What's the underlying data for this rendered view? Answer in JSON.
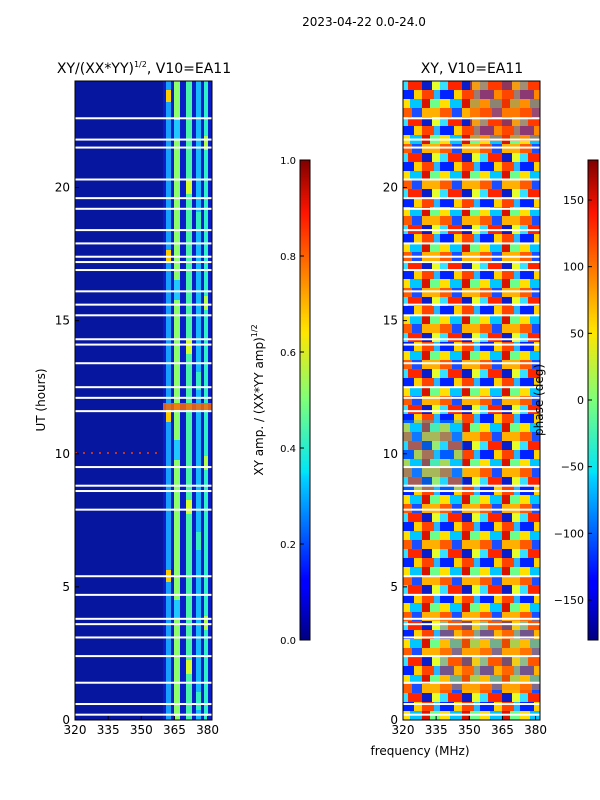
{
  "suptitle": "2023-04-22 0.0-24.0",
  "shared_xlabel": "frequency (MHz)",
  "chart_data": [
    {
      "type": "heatmap",
      "title": "XY/(XX*YY)^1/2, V10=EA11",
      "title_main": "XY/(XX*YY)",
      "title_sup": "1/2",
      "title_tail": ", V10=EA11",
      "xlabel": "frequency (MHz)",
      "ylabel": "UT (hours)",
      "xlim": [
        320,
        382
      ],
      "ylim": [
        0,
        24
      ],
      "xticks": [
        320,
        335,
        350,
        365,
        380
      ],
      "yticks": [
        0,
        5,
        10,
        15,
        20
      ],
      "colorbar": {
        "label": "XY amp. / (XX*YY amp)^1/2",
        "label_main": "XY amp. / (XX*YY amp)",
        "label_sup": "1/2",
        "range": [
          0.0,
          1.0
        ],
        "ticks": [
          "0.0",
          "0.2",
          "0.4",
          "0.6",
          "0.8",
          "1.0"
        ],
        "colormap": "jet"
      }
    },
    {
      "type": "heatmap",
      "title": "XY, V10=EA11",
      "xlabel": "frequency (MHz)",
      "ylabel": "",
      "xlim": [
        320,
        382
      ],
      "ylim": [
        0,
        24
      ],
      "xticks": [
        320,
        335,
        350,
        365,
        380
      ],
      "yticks": [
        0,
        5,
        10,
        15,
        20
      ],
      "colorbar": {
        "label": "phase (deg)",
        "range": [
          -180,
          180
        ],
        "ticks": [
          "−150",
          "−100",
          "−50",
          "0",
          "50",
          "100",
          "150"
        ],
        "colormap": "jet"
      }
    }
  ]
}
